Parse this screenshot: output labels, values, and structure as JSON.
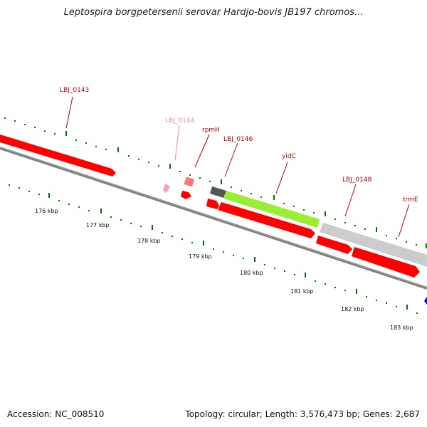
{
  "title": "Leptospira borgpetersenii serovar Hardjo-bovis JB197 chromos...",
  "accession": "Accession: NC_008510",
  "topology": "Topology: circular; Length: 3,576,473 bp; Genes: 2,687",
  "kbp_labels": [
    "176 kbp",
    "177 kbp",
    "178 kbp",
    "179 kbp",
    "180 kbp",
    "181 kbp",
    "182 kbp",
    "183 kbp"
  ],
  "genes": [
    {
      "id": "g143",
      "name": "LBJ_0143",
      "color": "#cc0000"
    },
    {
      "id": "g144",
      "name": "LBJ_0144",
      "color": "#ee88bb"
    },
    {
      "id": "grpmH",
      "name": "rpmH",
      "color": "#cc0000"
    },
    {
      "id": "g146",
      "name": "LBJ_0146",
      "color": "#cc0000"
    },
    {
      "id": "gyidC",
      "name": "yidC",
      "color": "#cc0000"
    },
    {
      "id": "g148",
      "name": "LBJ_0148",
      "color": "#cc0000"
    },
    {
      "id": "gtrmE",
      "name": "trmE",
      "color": "#cc0000"
    }
  ],
  "colors": {
    "cds_red": "#ff0000",
    "yidC_green": "#99ee33",
    "gray_feature": "#c8c8c8",
    "backbone": "#808080",
    "tick_green": "#007700",
    "pink_feature": "#ff99cc"
  }
}
